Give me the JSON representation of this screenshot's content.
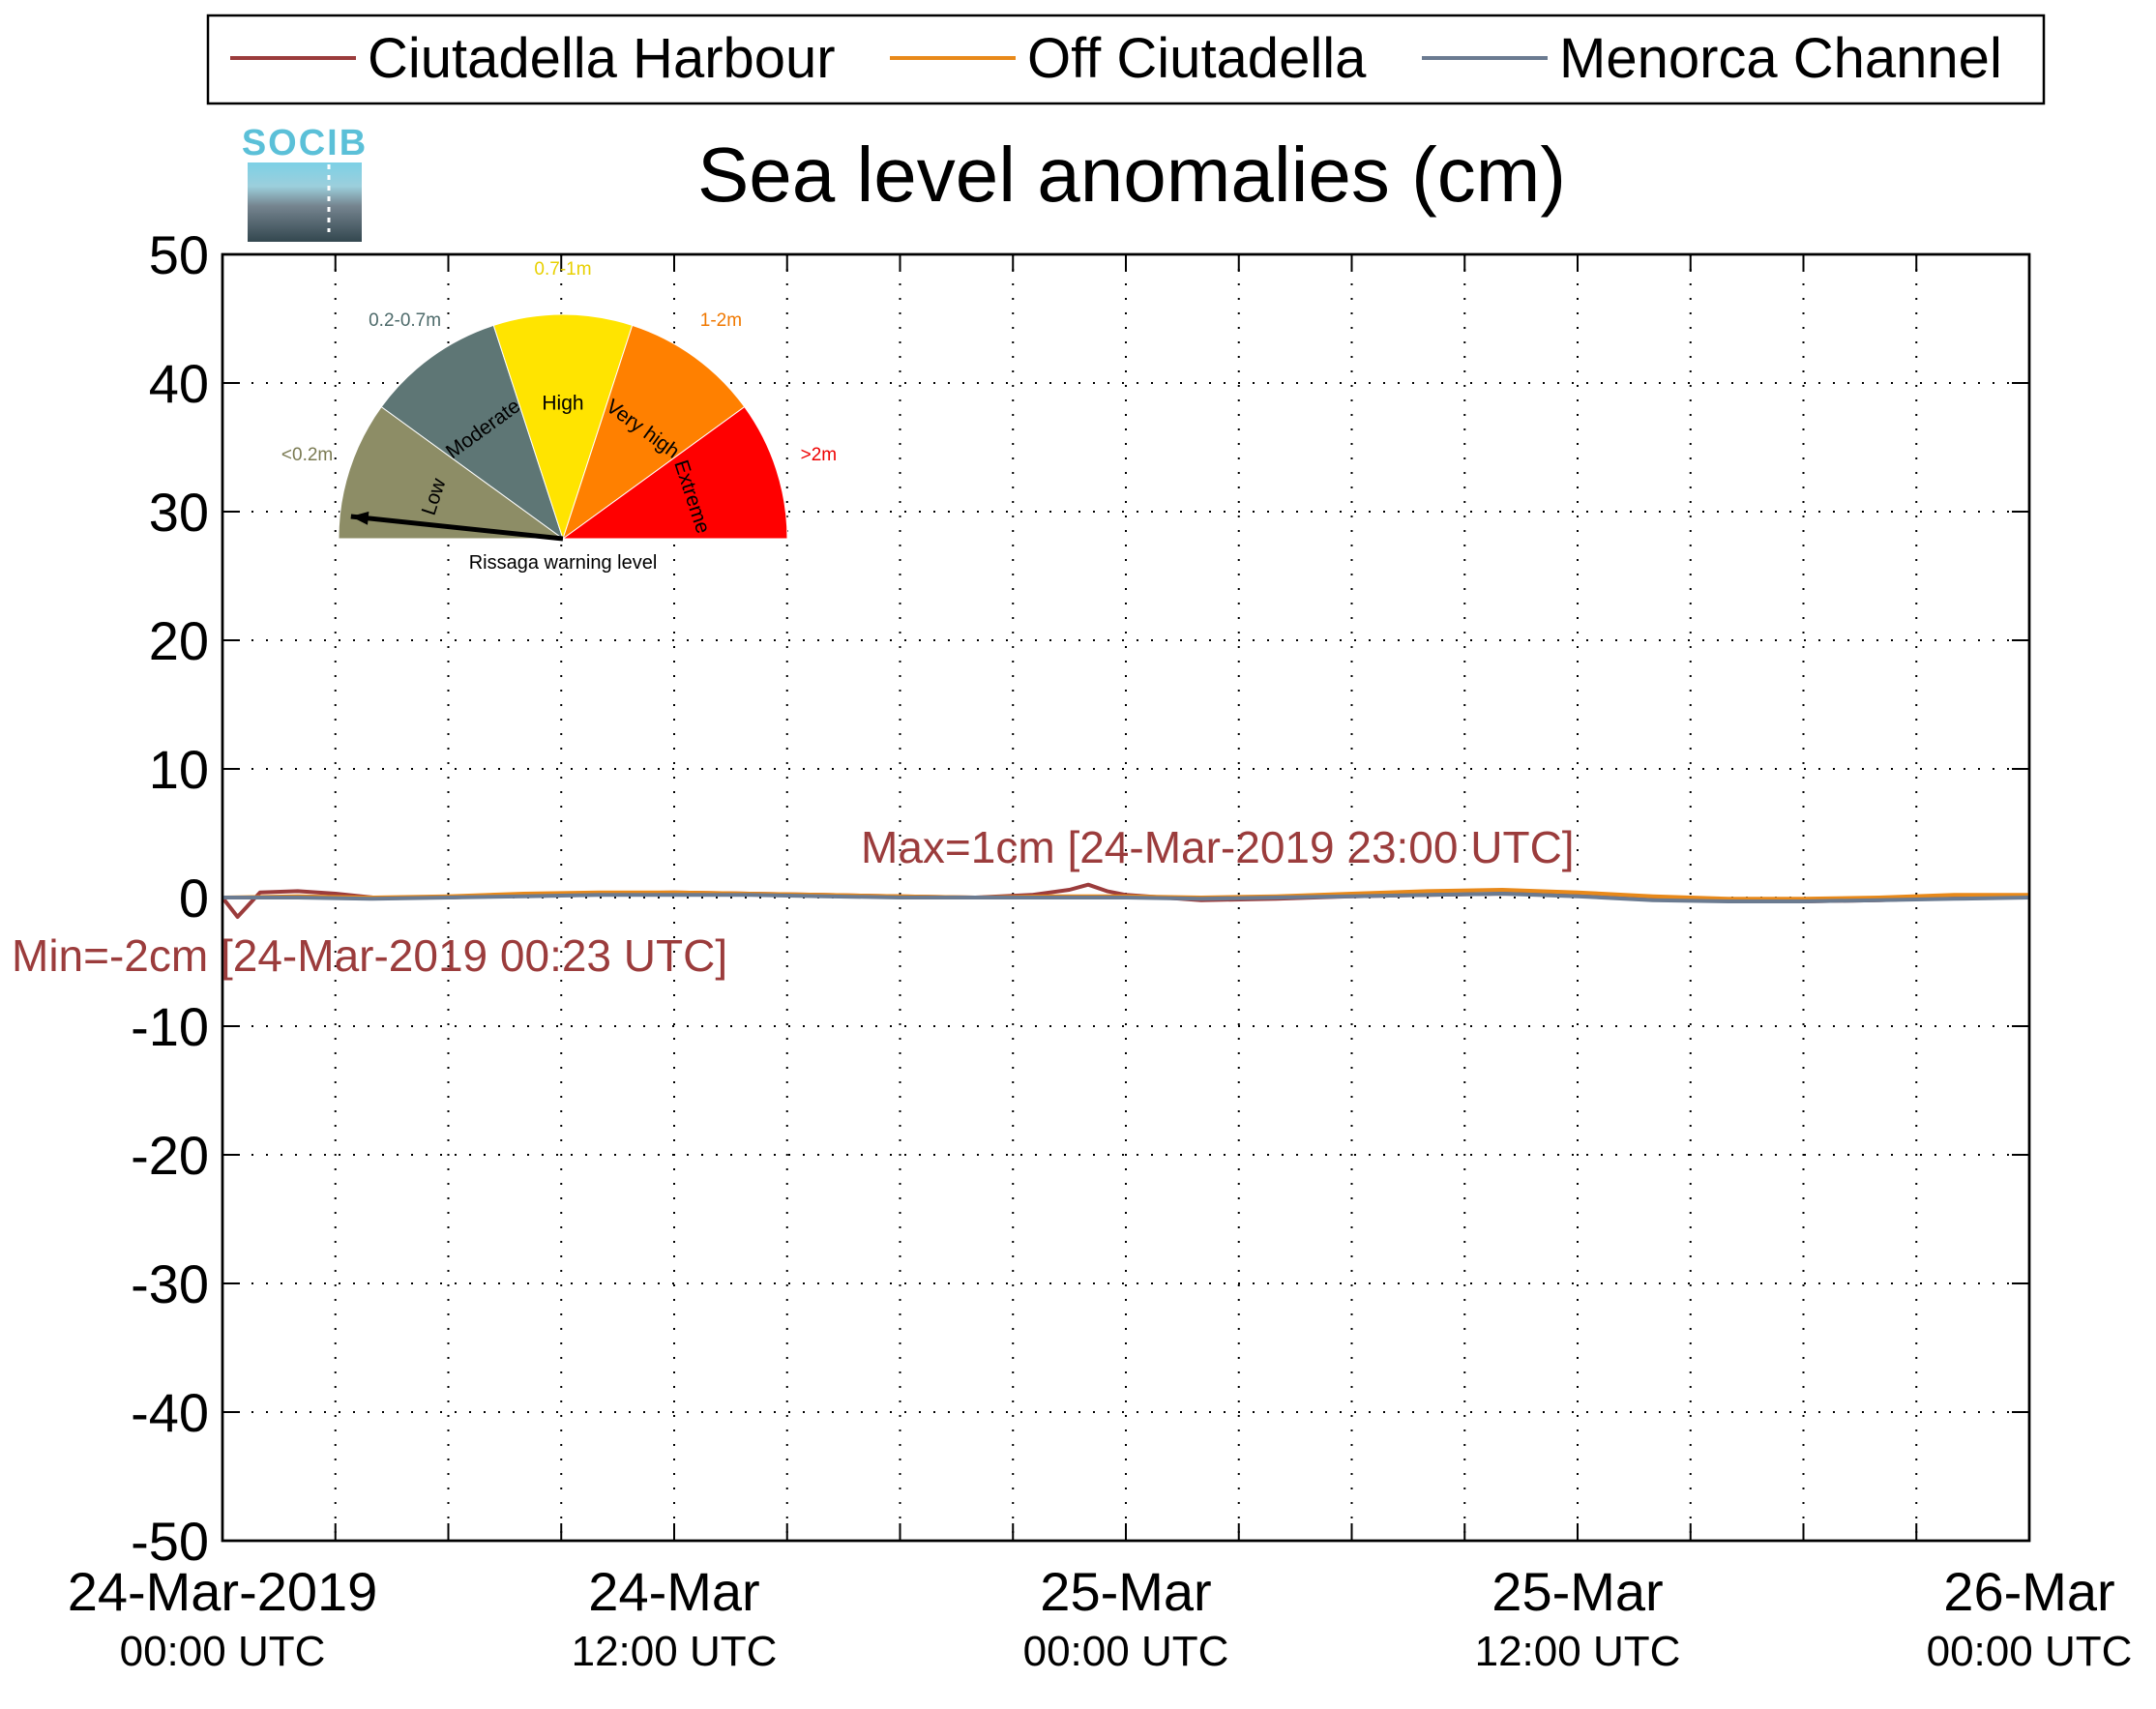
{
  "chart_data": {
    "type": "line",
    "title": "Sea level anomalies (cm)",
    "xlabel": "",
    "ylabel": "",
    "ylim": [
      -50,
      50
    ],
    "yticks": [
      50,
      40,
      30,
      20,
      10,
      0,
      -10,
      -20,
      -30,
      -40,
      -50
    ],
    "xlim": [
      "24-Mar-2019 00:00 UTC",
      "26-Mar-2019 00:00 UTC"
    ],
    "grid": true,
    "legend_position": "top",
    "x_tick_labels": [
      {
        "date": "24-Mar-2019",
        "time": "00:00 UTC",
        "hour": 0
      },
      {
        "date": "24-Mar",
        "time": "12:00 UTC",
        "hour": 12
      },
      {
        "date": "25-Mar",
        "time": "00:00 UTC",
        "hour": 24
      },
      {
        "date": "25-Mar",
        "time": "12:00 UTC",
        "hour": 36
      },
      {
        "date": "26-Mar",
        "time": "00:00 UTC",
        "hour": 48
      }
    ],
    "x_minor_tick_hours": [
      3,
      6,
      9,
      15,
      18,
      21,
      27,
      30,
      33,
      39,
      42,
      45
    ],
    "series": [
      {
        "name": "Ciutadella Harbour",
        "color": "#9b3c3c",
        "x_hours": [
          0,
          0.4,
          1,
          2,
          3,
          4,
          6,
          8,
          10,
          12,
          14,
          16,
          18,
          20,
          21.5,
          22.5,
          23,
          23.5,
          24,
          26,
          28,
          30,
          32,
          34,
          36,
          38,
          40,
          42,
          44,
          46,
          48
        ],
        "values": [
          0,
          -1.5,
          0.4,
          0.5,
          0.3,
          0,
          0,
          0.2,
          0.3,
          0.4,
          0.3,
          0.2,
          0.1,
          0,
          0.2,
          0.6,
          1,
          0.5,
          0.2,
          -0.2,
          -0.1,
          0.1,
          0.2,
          0.3,
          0.2,
          0,
          -0.2,
          -0.3,
          -0.2,
          0,
          0.1
        ]
      },
      {
        "name": "Off Ciutadella",
        "color": "#e8891a",
        "x_hours": [
          0,
          2,
          4,
          6,
          8,
          10,
          12,
          14,
          16,
          18,
          20,
          22,
          24,
          26,
          28,
          30,
          32,
          34,
          35,
          36,
          38,
          40,
          42,
          44,
          46,
          48
        ],
        "values": [
          0,
          0.1,
          0,
          0.1,
          0.3,
          0.4,
          0.4,
          0.3,
          0.2,
          0.1,
          0,
          0.1,
          0.1,
          0,
          0.1,
          0.3,
          0.5,
          0.6,
          0.5,
          0.4,
          0.1,
          -0.1,
          -0.1,
          0,
          0.2,
          0.2
        ]
      },
      {
        "name": "Menorca Channel",
        "color": "#6b7b91",
        "x_hours": [
          0,
          2,
          4,
          6,
          8,
          10,
          12,
          14,
          16,
          18,
          20,
          22,
          24,
          26,
          28,
          30,
          32,
          34,
          36,
          38,
          40,
          42,
          44,
          46,
          48
        ],
        "values": [
          0,
          0,
          -0.1,
          0,
          0.1,
          0.2,
          0.2,
          0.2,
          0.1,
          0,
          0,
          0,
          0,
          -0.1,
          0,
          0.1,
          0.2,
          0.3,
          0.1,
          -0.2,
          -0.3,
          -0.3,
          -0.2,
          -0.1,
          0
        ]
      }
    ],
    "annotations": {
      "max_label": "Max=1cm [24-Mar-2019 23:00 UTC]",
      "min_label": "Min=-2cm [24-Mar-2019 00:23 UTC]",
      "color": "#9b3c3c"
    }
  },
  "logo": {
    "text": "SOCIB"
  },
  "gauge": {
    "title": "Rissaga warning level",
    "needle_segment": "Low",
    "segments": [
      {
        "name": "Low",
        "range": "<0.2m",
        "color": "#8d8d66",
        "label_color": "#7a7a52"
      },
      {
        "name": "Moderate",
        "range": "0.2-0.7m",
        "color": "#5e7675",
        "label_color": "#4d6a6a"
      },
      {
        "name": "High",
        "range": "0.7-1m",
        "color": "#ffe400",
        "label_color": "#e8d000"
      },
      {
        "name": "Very high",
        "range": "1-2m",
        "color": "#ff8000",
        "label_color": "#f07800"
      },
      {
        "name": "Extreme",
        "range": ">2m",
        "color": "#ff0000",
        "label_color": "#ee0000"
      }
    ]
  }
}
